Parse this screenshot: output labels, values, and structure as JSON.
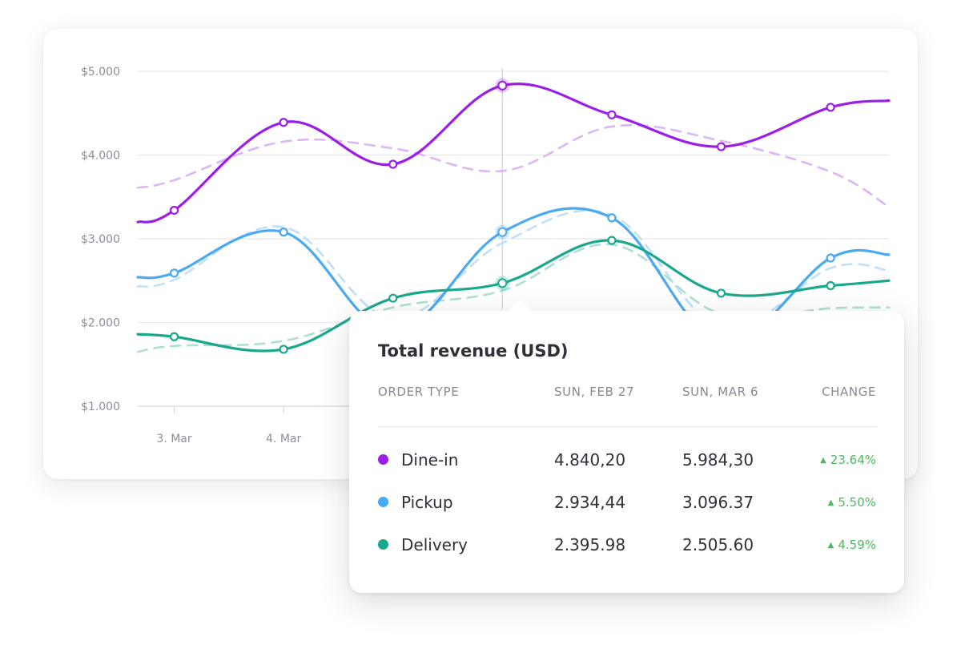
{
  "colors": {
    "dine_in": "#9b1ee8",
    "dine_in_prev": "#dcb6f6",
    "pickup": "#4aa9f2",
    "pickup_prev": "#bfe0fb",
    "delivery": "#1aa88c",
    "delivery_prev": "#aedfd2",
    "change_positive": "#4db862"
  },
  "chart_data": {
    "type": "line",
    "ylim": [
      1000,
      5000
    ],
    "y_ticks": [
      "$5.000",
      "$4.000",
      "$3.000",
      "$2.000",
      "$1.000"
    ],
    "y_tick_values": [
      5000,
      4000,
      3000,
      2000,
      1000
    ],
    "x_ticks": [
      "3. Mar",
      "4. Mar"
    ],
    "x_tick_index": [
      1,
      4
    ],
    "xlim": [
      0,
      20.6
    ],
    "highlight_index": 10,
    "series": [
      {
        "key": "dine_in",
        "values": [
          3200,
          3340,
          4390,
          3890,
          4830,
          4480,
          4100,
          4570,
          4650
        ],
        "x": [
          0,
          1,
          4,
          7,
          10,
          13,
          16,
          19,
          20.6
        ],
        "markers": [
          1,
          4,
          7,
          10,
          13,
          16,
          19
        ]
      },
      {
        "key": "dine_in_prev",
        "dashed": true,
        "values": [
          3610,
          3700,
          4160,
          4080,
          3810,
          4340,
          4170,
          3800,
          3380
        ],
        "x": [
          0,
          1,
          4,
          7,
          10,
          13,
          16,
          19,
          20.6
        ]
      },
      {
        "key": "pickup",
        "values": [
          2540,
          2590,
          3080,
          1900,
          3080,
          3250,
          1780,
          2770,
          2810
        ],
        "x": [
          0,
          1,
          4,
          7,
          10,
          13,
          16,
          19,
          20.6
        ],
        "markers": [
          1,
          4,
          10,
          13,
          19
        ]
      },
      {
        "key": "pickup_prev",
        "dashed": true,
        "values": [
          2430,
          2510,
          3140,
          2050,
          2950,
          3280,
          1950,
          2650,
          2620
        ],
        "x": [
          0,
          1,
          4,
          7,
          10,
          13,
          16,
          19,
          20.6
        ]
      },
      {
        "key": "delivery",
        "values": [
          1860,
          1830,
          1680,
          2290,
          2470,
          2980,
          2350,
          2440,
          2500
        ],
        "x": [
          0,
          1,
          4,
          7,
          10,
          13,
          16,
          19,
          20.6
        ],
        "markers": [
          1,
          4,
          7,
          10,
          13,
          16,
          19
        ]
      },
      {
        "key": "delivery_prev",
        "dashed": true,
        "values": [
          1650,
          1720,
          1780,
          2180,
          2380,
          2930,
          2100,
          2170,
          2180
        ],
        "x": [
          0,
          1,
          4,
          7,
          10,
          13,
          16,
          19,
          20.6
        ]
      }
    ]
  },
  "tooltip": {
    "title": "Total revenue (USD)",
    "headers": {
      "type": "ORDER TYPE",
      "date_a": "SUN, FEB 27",
      "date_b": "SUN, MAR 6",
      "change": "CHANGE"
    },
    "rows": [
      {
        "label": "Dine-in",
        "a": "4.840,20",
        "b": "5.984,30",
        "change": "23.64%"
      },
      {
        "label": "Pickup",
        "a": "2.934,44",
        "b": "3.096.37",
        "change": "5.50%"
      },
      {
        "label": "Delivery",
        "a": "2.395.98",
        "b": "2.505.60",
        "change": "4.59%"
      }
    ]
  }
}
